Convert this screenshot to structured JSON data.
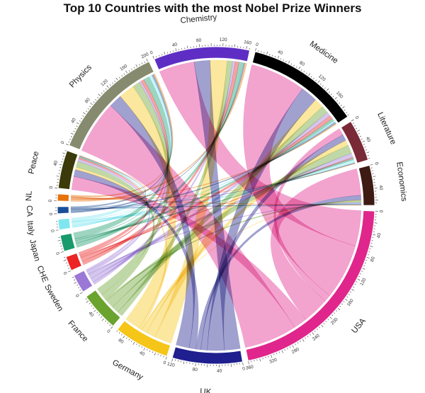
{
  "title": "Top 10 Countries with the most Nobel Prize Winners",
  "chart_data": {
    "type": "chord",
    "categories": [
      {
        "name": "Chemistry",
        "color": "#5e2ec4",
        "kind": "prize"
      },
      {
        "name": "Medicine",
        "color": "#000000",
        "kind": "prize"
      },
      {
        "name": "Literature",
        "color": "#7a2a36",
        "kind": "prize"
      },
      {
        "name": "Economics",
        "color": "#3d1a14",
        "kind": "prize"
      },
      {
        "name": "USA",
        "color": "#e0268c",
        "kind": "country"
      },
      {
        "name": "UK",
        "color": "#1f1f8f",
        "kind": "country"
      },
      {
        "name": "Germany",
        "color": "#f5c518",
        "kind": "country"
      },
      {
        "name": "France",
        "color": "#6aa32e",
        "kind": "country"
      },
      {
        "name": "Sweden",
        "color": "#9b78d6",
        "kind": "country"
      },
      {
        "name": "CHE",
        "color": "#ec2424",
        "kind": "country"
      },
      {
        "name": "Japan",
        "color": "#179a6c",
        "kind": "country"
      },
      {
        "name": "Italy",
        "color": "#7fe6f0",
        "kind": "country"
      },
      {
        "name": "CA",
        "color": "#1a4f97",
        "kind": "country"
      },
      {
        "name": "NL",
        "color": "#e8720c",
        "kind": "country"
      },
      {
        "name": "Peace",
        "color": "#3a3a0a",
        "kind": "prize"
      },
      {
        "name": "Physics",
        "color": "#868a6e",
        "kind": "prize"
      }
    ],
    "countries": [
      "USA",
      "UK",
      "Germany",
      "France",
      "Sweden",
      "CHE",
      "Japan",
      "Italy",
      "CA",
      "NL"
    ],
    "prizes": [
      "Chemistry",
      "Medicine",
      "Literature",
      "Economics",
      "Peace",
      "Physics"
    ],
    "matrix": {
      "USA": {
        "Chemistry": 67,
        "Medicine": 105,
        "Literature": 13,
        "Economics": 50,
        "Peace": 25,
        "Physics": 100
      },
      "UK": {
        "Chemistry": 30,
        "Medicine": 32,
        "Literature": 12,
        "Economics": 9,
        "Peace": 13,
        "Physics": 25
      },
      "Germany": {
        "Chemistry": 32,
        "Medicine": 18,
        "Literature": 10,
        "Economics": 1,
        "Peace": 5,
        "Physics": 30
      },
      "France": {
        "Chemistry": 10,
        "Medicine": 14,
        "Literature": 16,
        "Economics": 3,
        "Peace": 11,
        "Physics": 14
      },
      "Sweden": {
        "Chemistry": 5,
        "Medicine": 8,
        "Literature": 8,
        "Economics": 2,
        "Peace": 5,
        "Physics": 4
      },
      "CHE": {
        "Chemistry": 7,
        "Medicine": 7,
        "Literature": 2,
        "Economics": 0,
        "Peace": 3,
        "Physics": 6
      },
      "Japan": {
        "Chemistry": 8,
        "Medicine": 5,
        "Literature": 3,
        "Economics": 0,
        "Peace": 1,
        "Physics": 11
      },
      "Italy": {
        "Chemistry": 1,
        "Medicine": 3,
        "Literature": 6,
        "Economics": 1,
        "Peace": 1,
        "Physics": 6
      },
      "CA": {
        "Chemistry": 2,
        "Medicine": 3,
        "Literature": 1,
        "Economics": 2,
        "Peace": 1,
        "Physics": 3
      },
      "NL": {
        "Chemistry": 4,
        "Medicine": 2,
        "Literature": 1,
        "Economics": 1,
        "Peace": 1,
        "Physics": 3
      }
    }
  }
}
